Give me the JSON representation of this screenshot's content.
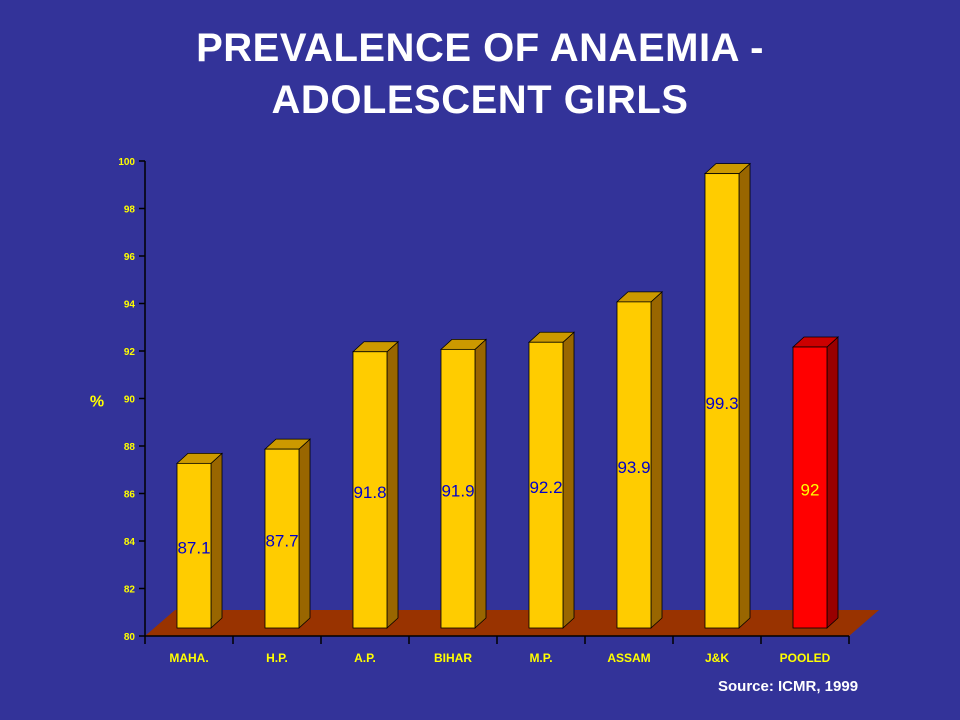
{
  "title_lines": [
    "PREVALENCE OF ANAEMIA -",
    "ADOLESCENT GIRLS"
  ],
  "source": "Source: ICMR, 1999",
  "colors": {
    "background": "#333399",
    "bar": "#FFCC00",
    "bar_pooled": "#FF0000",
    "value_label": "#0000CC",
    "value_label_pooled": "#FFFF00",
    "axis_text": "#FFFF00",
    "floor": "#993300"
  },
  "chart_data": {
    "type": "bar",
    "title": "PREVALENCE OF ANAEMIA - ADOLESCENT GIRLS",
    "ylabel": "%",
    "xlabel": "",
    "ylim": [
      80,
      100
    ],
    "yticks": [
      80,
      82,
      84,
      86,
      88,
      90,
      92,
      94,
      96,
      98,
      100
    ],
    "categories": [
      "MAHA.",
      "H.P.",
      "A.P.",
      "BIHAR",
      "M.P.",
      "ASSAM",
      "J&K",
      "POOLED"
    ],
    "values": [
      87.1,
      87.7,
      91.8,
      91.9,
      92.2,
      93.9,
      99.3,
      92
    ],
    "data_labels": [
      "87.1",
      "87.7",
      "91.8",
      "91.9",
      "92.2",
      "93.9",
      "99.3",
      "92"
    ],
    "highlight_category": "POOLED",
    "grid": false,
    "legend": "none"
  }
}
